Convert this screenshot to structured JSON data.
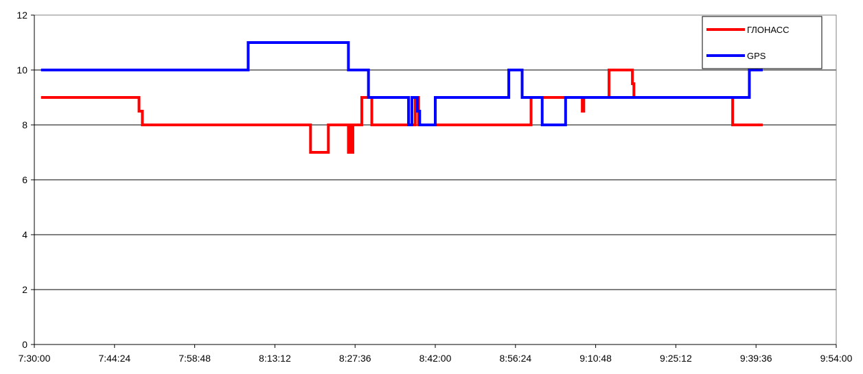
{
  "chart_data": {
    "type": "line",
    "title": "",
    "xlabel": "",
    "ylabel": "",
    "x_unit": "time (h:mm:ss)",
    "xlim": [
      "7:30:00",
      "9:54:00"
    ],
    "ylim": [
      0,
      12
    ],
    "x_ticks": [
      "7:30:00",
      "7:44:24",
      "7:58:48",
      "8:13:12",
      "8:27:36",
      "8:42:00",
      "8:56:24",
      "9:10:48",
      "9:25:12",
      "9:39:36",
      "9:54:00"
    ],
    "y_ticks": [
      0,
      2,
      4,
      6,
      8,
      10,
      12
    ],
    "grid": "horizontal",
    "legend_position": "top-right",
    "series": [
      {
        "name": "ГЛОНАСС",
        "color": "#ff0000",
        "points": [
          [
            "7:31:12",
            9
          ],
          [
            "7:48:48",
            9
          ],
          [
            "7:48:48",
            8.5
          ],
          [
            "7:49:24",
            8.5
          ],
          [
            "7:49:24",
            8
          ],
          [
            "8:19:36",
            8
          ],
          [
            "8:19:36",
            7
          ],
          [
            "8:22:48",
            7
          ],
          [
            "8:22:48",
            8
          ],
          [
            "8:26:24",
            8
          ],
          [
            "8:26:24",
            7
          ],
          [
            "8:26:40",
            7
          ],
          [
            "8:26:40",
            8
          ],
          [
            "8:26:56",
            8
          ],
          [
            "8:26:56",
            7
          ],
          [
            "8:27:12",
            7
          ],
          [
            "8:27:12",
            8
          ],
          [
            "8:28:48",
            8
          ],
          [
            "8:28:48",
            9
          ],
          [
            "8:30:36",
            9
          ],
          [
            "8:30:36",
            8
          ],
          [
            "8:38:24",
            8
          ],
          [
            "8:38:24",
            9
          ],
          [
            "8:39:00",
            9
          ],
          [
            "8:39:00",
            8
          ],
          [
            "8:59:12",
            8
          ],
          [
            "8:59:12",
            9
          ],
          [
            "9:08:24",
            9
          ],
          [
            "9:08:24",
            8.5
          ],
          [
            "9:08:40",
            8.5
          ],
          [
            "9:08:40",
            9
          ],
          [
            "9:13:12",
            9
          ],
          [
            "9:13:12",
            10
          ],
          [
            "9:17:24",
            10
          ],
          [
            "9:17:24",
            9.5
          ],
          [
            "9:17:40",
            9.5
          ],
          [
            "9:17:40",
            9
          ],
          [
            "9:35:24",
            9
          ],
          [
            "9:35:24",
            8
          ],
          [
            "9:40:48",
            8
          ]
        ]
      },
      {
        "name": "GPS",
        "color": "#0000ff",
        "points": [
          [
            "7:31:12",
            10
          ],
          [
            "8:08:24",
            10
          ],
          [
            "8:08:24",
            11
          ],
          [
            "8:26:24",
            11
          ],
          [
            "8:26:24",
            10
          ],
          [
            "8:30:00",
            10
          ],
          [
            "8:30:00",
            9
          ],
          [
            "8:37:12",
            9
          ],
          [
            "8:37:12",
            8
          ],
          [
            "8:37:48",
            8
          ],
          [
            "8:37:48",
            9
          ],
          [
            "8:38:48",
            9
          ],
          [
            "8:38:48",
            8.5
          ],
          [
            "8:39:12",
            8.5
          ],
          [
            "8:39:12",
            8
          ],
          [
            "8:42:00",
            8
          ],
          [
            "8:42:00",
            9
          ],
          [
            "8:55:12",
            9
          ],
          [
            "8:55:12",
            10
          ],
          [
            "8:57:36",
            10
          ],
          [
            "8:57:36",
            9
          ],
          [
            "9:01:12",
            9
          ],
          [
            "9:01:12",
            8
          ],
          [
            "9:05:24",
            8
          ],
          [
            "9:05:24",
            9
          ],
          [
            "9:38:24",
            9
          ],
          [
            "9:38:24",
            10
          ],
          [
            "9:40:48",
            10
          ]
        ]
      }
    ]
  }
}
